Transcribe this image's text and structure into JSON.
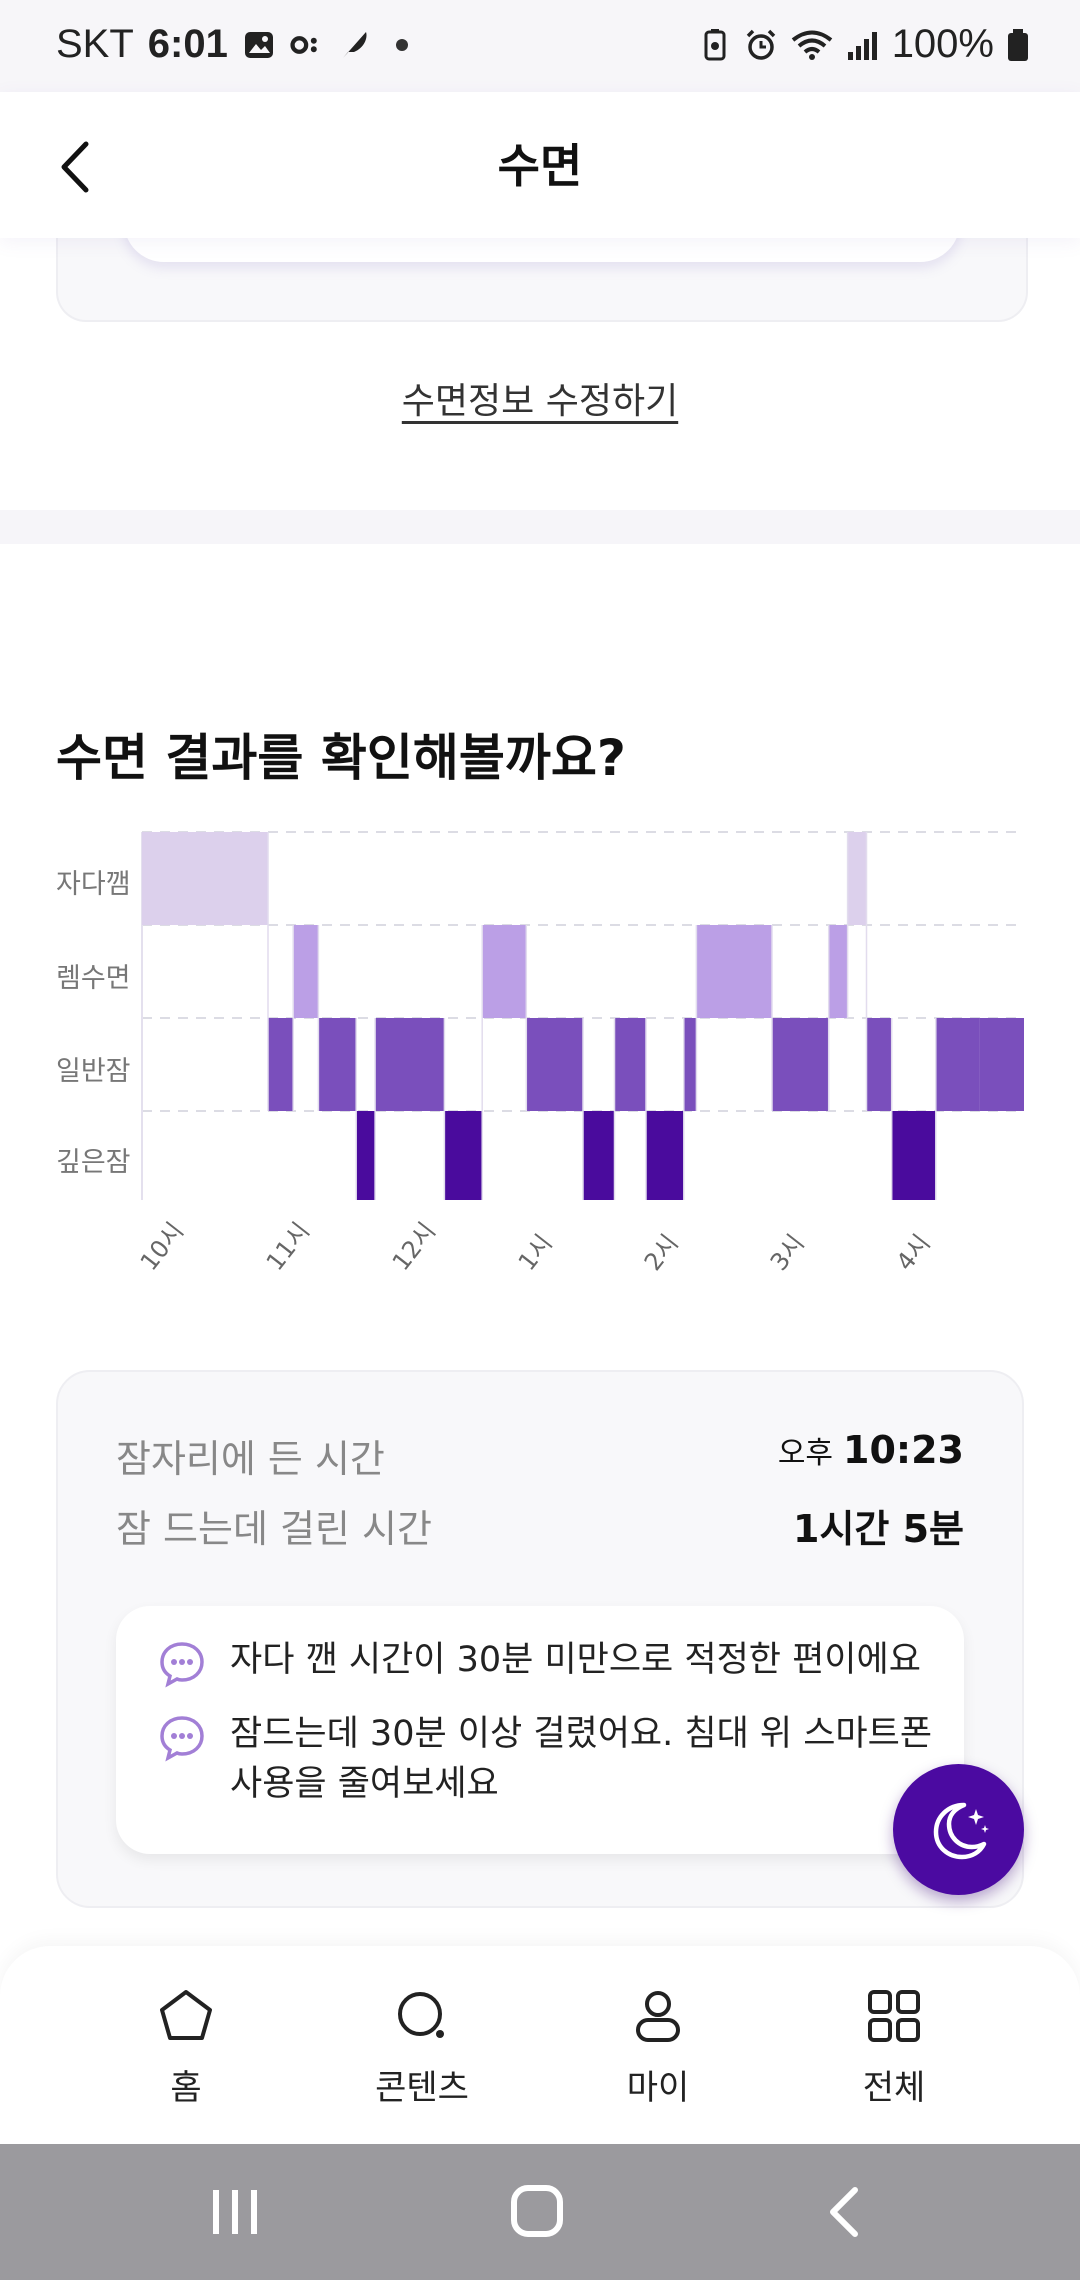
{
  "status_bar": {
    "carrier": "SKT",
    "time": "6:01",
    "battery": "100%"
  },
  "header": {
    "title": "수면"
  },
  "edit_link": "수면정보 수정하기",
  "section": {
    "title": "수면 결과를 확인해볼까요?"
  },
  "chart_data": {
    "type": "hypnogram",
    "stages": [
      "자다깸",
      "렘수면",
      "일반잠",
      "깊은잠"
    ],
    "x_ticks": [
      "10시",
      "11시",
      "12시",
      "1시",
      "2시",
      "3시",
      "4시"
    ],
    "x_range_hours": [
      22.0,
      29.0
    ],
    "colors": {
      "자다깸": "#dcd0ec",
      "렘수면": "#bb9fe6",
      "일반잠": "#7a4fbc",
      "깊은잠": "#4a0b9d"
    },
    "segments": [
      {
        "stage": "자다깸",
        "start": 22.0,
        "end": 23.0
      },
      {
        "stage": "일반잠",
        "start": 23.0,
        "end": 23.2
      },
      {
        "stage": "렘수면",
        "start": 23.2,
        "end": 23.4
      },
      {
        "stage": "일반잠",
        "start": 23.4,
        "end": 23.7
      },
      {
        "stage": "깊은잠",
        "start": 23.7,
        "end": 23.85
      },
      {
        "stage": "일반잠",
        "start": 23.85,
        "end": 24.4
      },
      {
        "stage": "깊은잠",
        "start": 24.4,
        "end": 24.7
      },
      {
        "stage": "렘수면",
        "start": 24.7,
        "end": 25.05
      },
      {
        "stage": "일반잠",
        "start": 25.05,
        "end": 25.5
      },
      {
        "stage": "깊은잠",
        "start": 25.5,
        "end": 25.75
      },
      {
        "stage": "일반잠",
        "start": 25.75,
        "end": 26.0
      },
      {
        "stage": "깊은잠",
        "start": 26.0,
        "end": 26.3
      },
      {
        "stage": "일반잠",
        "start": 26.3,
        "end": 26.4
      },
      {
        "stage": "렘수면",
        "start": 26.4,
        "end": 27.0
      },
      {
        "stage": "일반잠",
        "start": 27.0,
        "end": 27.45
      },
      {
        "stage": "렘수면",
        "start": 27.45,
        "end": 27.6
      },
      {
        "stage": "자다깸",
        "start": 27.6,
        "end": 27.75
      },
      {
        "stage": "일반잠",
        "start": 27.75,
        "end": 27.95
      },
      {
        "stage": "깊은잠",
        "start": 27.95,
        "end": 28.3
      },
      {
        "stage": "일반잠",
        "start": 28.3,
        "end": 28.65
      },
      {
        "stage": "일반잠",
        "start": 28.65,
        "end": 29.0
      }
    ]
  },
  "summary": {
    "bedtime_label": "잠자리에 든 시간",
    "bedtime_period": "오후",
    "bedtime_value": "10:23",
    "latency_label": "잠 드는데 걸린 시간",
    "latency_value": "1시간 5분",
    "tips": [
      "자다 깬 시간이 30분 미만으로 적정한 편이에요",
      "잠드는데 30분 이상 걸렸어요. 침대 위 스마트폰 사용을 줄여보세요"
    ]
  },
  "bottom_nav": {
    "items": [
      {
        "label": "홈",
        "icon": "home-icon"
      },
      {
        "label": "콘텐츠",
        "icon": "contents-icon"
      },
      {
        "label": "마이",
        "icon": "person-icon"
      },
      {
        "label": "전체",
        "icon": "grid-icon"
      }
    ]
  }
}
